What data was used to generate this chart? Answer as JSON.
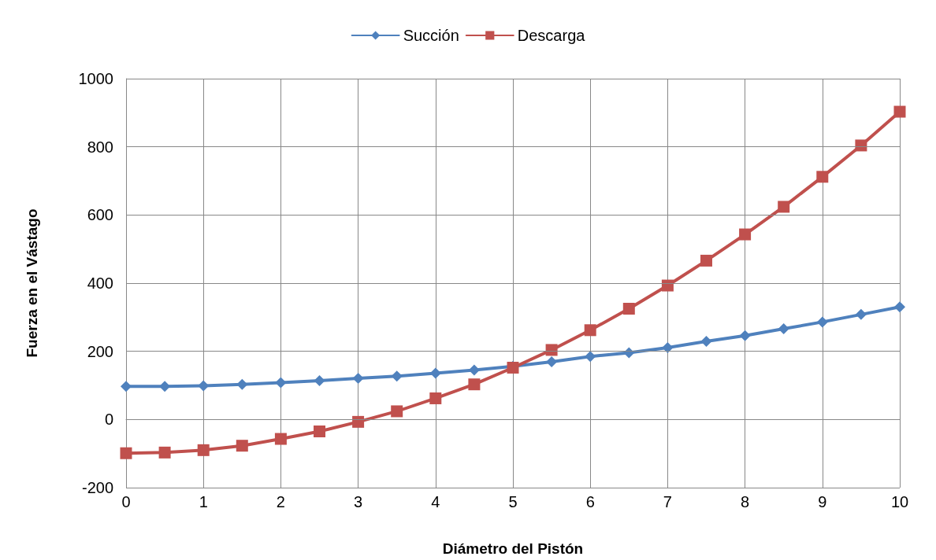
{
  "chart_data": {
    "type": "line",
    "xlabel": "Diámetro del Pistón",
    "ylabel": "Fuerza en el Vástago",
    "x": [
      0,
      0.5,
      1,
      1.5,
      2,
      2.5,
      3,
      3.5,
      4,
      4.5,
      5,
      5.5,
      6,
      6.5,
      7,
      7.5,
      8,
      8.5,
      9,
      9.5,
      10
    ],
    "series": [
      {
        "name": "Succión",
        "color": "#4f81bd",
        "marker": "diamond",
        "values": [
          97,
          97,
          99,
          103,
          108,
          114,
          121,
          127,
          136,
          145,
          156,
          169,
          185,
          196,
          211,
          229,
          246,
          266,
          286,
          308,
          330
        ]
      },
      {
        "name": "Descarga",
        "color": "#c0504d",
        "marker": "square",
        "values": [
          -99,
          -97,
          -90,
          -77,
          -57,
          -35,
          -7,
          24,
          62,
          103,
          152,
          204,
          262,
          325,
          393,
          466,
          543,
          624,
          712,
          804,
          903
        ]
      }
    ],
    "xlim": [
      0,
      10
    ],
    "xticks": [
      0,
      1,
      2,
      3,
      4,
      5,
      6,
      7,
      8,
      9,
      10
    ],
    "ylim": [
      -200,
      1000
    ],
    "yticks": [
      -200,
      0,
      200,
      400,
      600,
      800,
      1000
    ],
    "grid": true,
    "legend": "top",
    "line_style": "solid"
  }
}
